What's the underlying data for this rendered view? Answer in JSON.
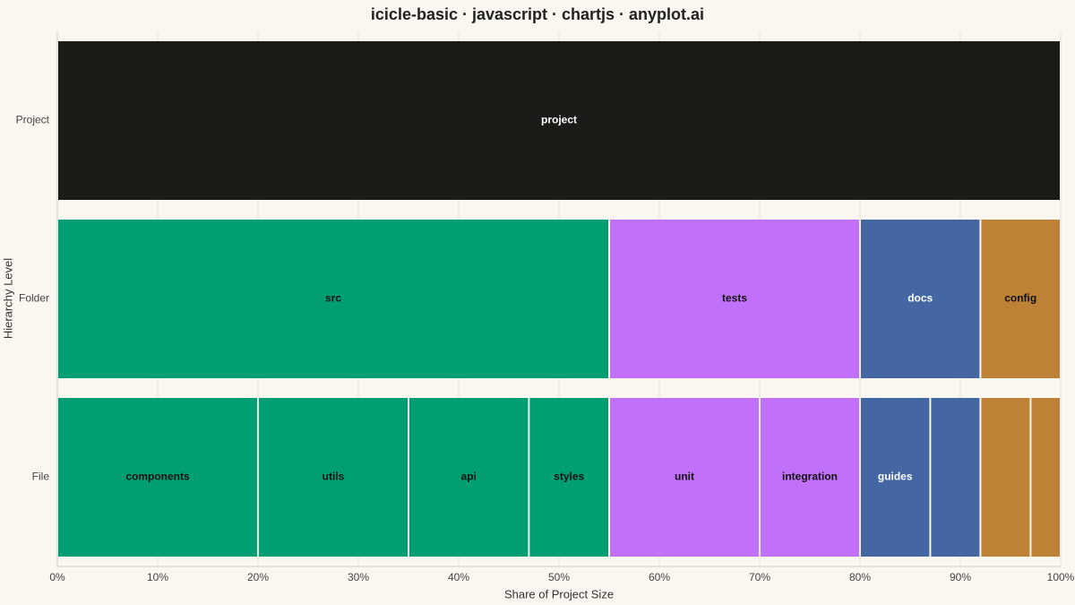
{
  "chart_data": {
    "type": "icicle",
    "title": "icicle-basic · javascript · chartjs · anyplot.ai",
    "xlabel": "Share of Project Size",
    "ylabel": "Hierarchy Level",
    "xlim": [
      0,
      100
    ],
    "xticks": [
      {
        "value": 0,
        "label": "0%"
      },
      {
        "value": 10,
        "label": "10%"
      },
      {
        "value": 20,
        "label": "20%"
      },
      {
        "value": 30,
        "label": "30%"
      },
      {
        "value": 40,
        "label": "40%"
      },
      {
        "value": 50,
        "label": "50%"
      },
      {
        "value": 60,
        "label": "60%"
      },
      {
        "value": 70,
        "label": "70%"
      },
      {
        "value": 80,
        "label": "80%"
      },
      {
        "value": 90,
        "label": "90%"
      },
      {
        "value": 100,
        "label": "100%"
      }
    ],
    "grid": true,
    "levels": [
      {
        "name": "Project",
        "segments": [
          {
            "name": "project",
            "value": 100,
            "color": "#1b1b17",
            "label_color": "#ffffff"
          }
        ]
      },
      {
        "name": "Folder",
        "segments": [
          {
            "name": "src",
            "value": 55,
            "color": "#009e73",
            "label_color": "#111111"
          },
          {
            "name": "tests",
            "value": 25,
            "color": "#c170fa",
            "label_color": "#111111"
          },
          {
            "name": "docs",
            "value": 12,
            "color": "#4467a3",
            "label_color": "#ffffff"
          },
          {
            "name": "config",
            "value": 8,
            "color": "#bd8236",
            "label_color": "#111111"
          }
        ]
      },
      {
        "name": "File",
        "segments": [
          {
            "name": "components",
            "value": 20,
            "color": "#009e73",
            "label_color": "#111111"
          },
          {
            "name": "utils",
            "value": 15,
            "color": "#009e73",
            "label_color": "#111111"
          },
          {
            "name": "api",
            "value": 12,
            "color": "#009e73",
            "label_color": "#111111"
          },
          {
            "name": "styles",
            "value": 8,
            "color": "#009e73",
            "label_color": "#111111"
          },
          {
            "name": "unit",
            "value": 15,
            "color": "#c170fa",
            "label_color": "#111111"
          },
          {
            "name": "integration",
            "value": 10,
            "color": "#c170fa",
            "label_color": "#111111"
          },
          {
            "name": "guides",
            "value": 7,
            "color": "#4467a3",
            "label_color": "#ffffff"
          },
          {
            "name": null,
            "value": 5,
            "color": "#4467a3",
            "label_color": "#ffffff"
          },
          {
            "name": null,
            "value": 5,
            "color": "#bd8236",
            "label_color": "#111111"
          },
          {
            "name": null,
            "value": 3,
            "color": "#bd8236",
            "label_color": "#111111"
          }
        ]
      }
    ]
  }
}
